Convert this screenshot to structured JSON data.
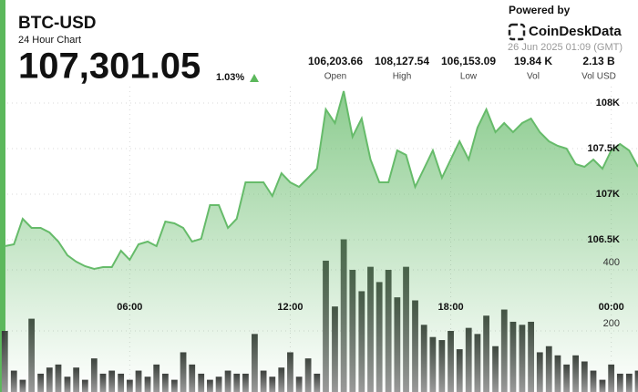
{
  "header": {
    "title": "BTC-USD",
    "subtitle": "24 Hour Chart",
    "price": "107,301.05",
    "change": "1.03%",
    "stats": [
      {
        "value": "106,203.66",
        "label": "Open"
      },
      {
        "value": "108,127.54",
        "label": "High"
      },
      {
        "value": "106,153.09",
        "label": "Low"
      },
      {
        "value": "19.84 K",
        "label": "Vol"
      },
      {
        "value": "2.13 B",
        "label": "Vol USD"
      }
    ],
    "powered_by": "Powered by",
    "brand": "CoinDeskData",
    "timestamp": "26 Jun 2025 01:09 (GMT)"
  },
  "chart_data": {
    "type": "area",
    "x": [
      1.33,
      1.67,
      2,
      2.33,
      2.67,
      3,
      3.33,
      3.67,
      4,
      4.33,
      4.67,
      5,
      5.33,
      5.67,
      6,
      6.33,
      6.67,
      7,
      7.33,
      7.67,
      8,
      8.33,
      8.67,
      9,
      9.33,
      9.67,
      10,
      10.33,
      10.67,
      11,
      11.33,
      11.67,
      12,
      12.33,
      12.67,
      13,
      13.33,
      13.67,
      14,
      14.33,
      14.67,
      15,
      15.33,
      15.67,
      16,
      16.33,
      16.67,
      17,
      17.33,
      17.67,
      18,
      18.33,
      18.67,
      19,
      19.33,
      19.67,
      20,
      20.33,
      20.67,
      21,
      21.33,
      21.67,
      22,
      22.33,
      22.67,
      23,
      23.33,
      23.67,
      24,
      24.33,
      24.67,
      25
    ],
    "xlim": [
      1.15,
      25.0
    ],
    "xticks": [
      {
        "value": 6,
        "label": "06:00"
      },
      {
        "value": 12,
        "label": "12:00"
      },
      {
        "value": 18,
        "label": "18:00"
      },
      {
        "value": 24,
        "label": "00:00"
      }
    ],
    "price": {
      "color": "#66bb6a",
      "values": [
        106430,
        106450,
        106730,
        106630,
        106630,
        106580,
        106480,
        106330,
        106260,
        106210,
        106180,
        106200,
        106200,
        106380,
        106280,
        106450,
        106480,
        106430,
        106700,
        106680,
        106630,
        106480,
        106510,
        106880,
        106880,
        106630,
        106730,
        107130,
        107130,
        107130,
        106980,
        107230,
        107130,
        107080,
        107180,
        107280,
        107930,
        107780,
        108130,
        107630,
        107830,
        107380,
        107130,
        107130,
        107480,
        107430,
        107080,
        107280,
        107480,
        107180,
        107380,
        107580,
        107380,
        107730,
        107930,
        107680,
        107780,
        107680,
        107780,
        107830,
        107680,
        107580,
        107530,
        107500,
        107330,
        107300,
        107380,
        107280,
        107480,
        107550,
        107480,
        107300
      ]
    },
    "volume": {
      "color": "#4a4a4a",
      "axis": "y2",
      "values": [
        200,
        70,
        40,
        240,
        60,
        80,
        90,
        50,
        80,
        40,
        110,
        60,
        70,
        60,
        40,
        70,
        50,
        90,
        60,
        40,
        130,
        90,
        60,
        40,
        50,
        70,
        60,
        60,
        190,
        70,
        50,
        80,
        130,
        50,
        110,
        60,
        430,
        280,
        500,
        400,
        330,
        410,
        360,
        400,
        310,
        410,
        300,
        220,
        180,
        170,
        200,
        140,
        210,
        190,
        250,
        150,
        270,
        230,
        220,
        230,
        130,
        150,
        120,
        90,
        120,
        100,
        70,
        40,
        90,
        60,
        60,
        70
      ]
    },
    "ylim": [
      105930,
      108180
    ],
    "yticks": [
      {
        "value": 106500,
        "label": "106.5K"
      },
      {
        "value": 107000,
        "label": "107K"
      },
      {
        "value": 107500,
        "label": "107.5K"
      },
      {
        "value": 108000,
        "label": "108K"
      }
    ],
    "y2lim": [
      0,
      600
    ],
    "y2ticks": [
      200,
      400
    ],
    "grid": true
  }
}
